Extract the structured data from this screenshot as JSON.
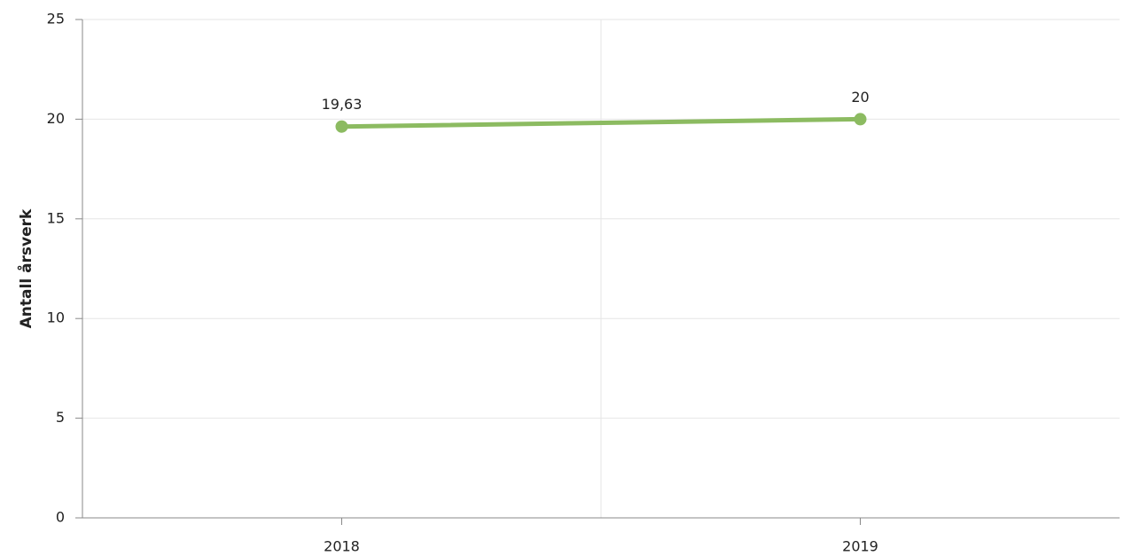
{
  "chart_data": {
    "type": "line",
    "y_label": "Antall årsverk",
    "categories": [
      "2018",
      "2019"
    ],
    "series": [
      {
        "name": null,
        "color": "#8cbb61",
        "values": [
          19.63,
          20
        ],
        "value_labels": [
          "19,63",
          "20"
        ]
      }
    ],
    "ylim": [
      0,
      25
    ],
    "yticks": [
      0,
      5,
      10,
      15,
      20,
      25
    ],
    "grid": true
  }
}
